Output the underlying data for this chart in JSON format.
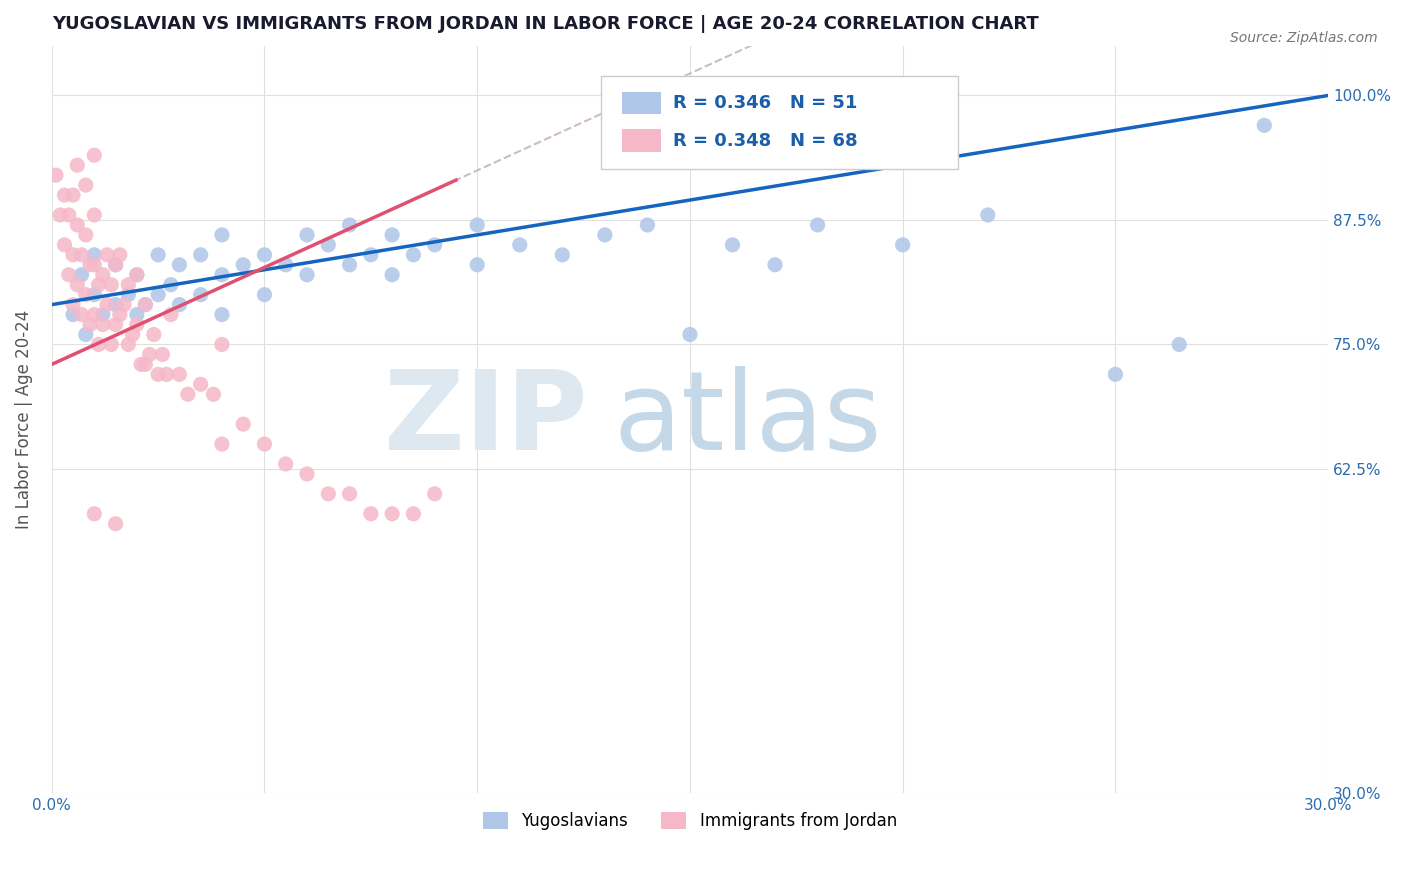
{
  "title": "YUGOSLAVIAN VS IMMIGRANTS FROM JORDAN IN LABOR FORCE | AGE 20-24 CORRELATION CHART",
  "source": "Source: ZipAtlas.com",
  "ylabel": "In Labor Force | Age 20-24",
  "xlim": [
    0.0,
    0.3
  ],
  "ylim": [
    0.3,
    1.05
  ],
  "xtick_positions": [
    0.0,
    0.05,
    0.1,
    0.15,
    0.2,
    0.25,
    0.3
  ],
  "xtick_labels": [
    "0.0%",
    "",
    "",
    "",
    "",
    "",
    "30.0%"
  ],
  "ytick_positions": [
    0.3,
    0.625,
    0.75,
    0.875,
    1.0
  ],
  "ytick_labels": [
    "30.0%",
    "62.5%",
    "75.0%",
    "87.5%",
    "100.0%"
  ],
  "blue_R": 0.346,
  "blue_N": 51,
  "pink_R": 0.348,
  "pink_N": 68,
  "blue_color": "#aec6e8",
  "pink_color": "#f5b8c8",
  "blue_line_color": "#1565c0",
  "pink_line_color": "#e05070",
  "pink_dash_color": "#ccaabb",
  "legend_R_color": "#1a5fa8",
  "blue_scatter_x": [
    0.005,
    0.007,
    0.008,
    0.01,
    0.01,
    0.012,
    0.015,
    0.015,
    0.018,
    0.02,
    0.02,
    0.022,
    0.025,
    0.025,
    0.028,
    0.03,
    0.03,
    0.035,
    0.035,
    0.04,
    0.04,
    0.04,
    0.045,
    0.05,
    0.05,
    0.055,
    0.06,
    0.06,
    0.065,
    0.07,
    0.07,
    0.075,
    0.08,
    0.08,
    0.085,
    0.09,
    0.1,
    0.1,
    0.11,
    0.12,
    0.13,
    0.14,
    0.15,
    0.16,
    0.17,
    0.18,
    0.2,
    0.22,
    0.25,
    0.265,
    0.285
  ],
  "blue_scatter_y": [
    0.78,
    0.82,
    0.76,
    0.8,
    0.84,
    0.78,
    0.79,
    0.83,
    0.8,
    0.78,
    0.82,
    0.79,
    0.8,
    0.84,
    0.81,
    0.79,
    0.83,
    0.8,
    0.84,
    0.78,
    0.82,
    0.86,
    0.83,
    0.8,
    0.84,
    0.83,
    0.82,
    0.86,
    0.85,
    0.83,
    0.87,
    0.84,
    0.82,
    0.86,
    0.84,
    0.85,
    0.83,
    0.87,
    0.85,
    0.84,
    0.86,
    0.87,
    0.76,
    0.85,
    0.83,
    0.87,
    0.85,
    0.88,
    0.72,
    0.75,
    0.97
  ],
  "pink_scatter_x": [
    0.001,
    0.002,
    0.003,
    0.003,
    0.004,
    0.004,
    0.005,
    0.005,
    0.005,
    0.006,
    0.006,
    0.006,
    0.007,
    0.007,
    0.008,
    0.008,
    0.008,
    0.009,
    0.009,
    0.01,
    0.01,
    0.01,
    0.01,
    0.011,
    0.011,
    0.012,
    0.012,
    0.013,
    0.013,
    0.014,
    0.014,
    0.015,
    0.015,
    0.016,
    0.016,
    0.017,
    0.018,
    0.018,
    0.019,
    0.02,
    0.02,
    0.021,
    0.022,
    0.022,
    0.023,
    0.024,
    0.025,
    0.026,
    0.027,
    0.028,
    0.03,
    0.032,
    0.035,
    0.038,
    0.04,
    0.04,
    0.045,
    0.05,
    0.055,
    0.06,
    0.065,
    0.07,
    0.075,
    0.08,
    0.085,
    0.09,
    0.01,
    0.015
  ],
  "pink_scatter_y": [
    0.92,
    0.88,
    0.85,
    0.9,
    0.82,
    0.88,
    0.79,
    0.84,
    0.9,
    0.81,
    0.87,
    0.93,
    0.78,
    0.84,
    0.8,
    0.86,
    0.91,
    0.77,
    0.83,
    0.78,
    0.83,
    0.88,
    0.94,
    0.75,
    0.81,
    0.77,
    0.82,
    0.79,
    0.84,
    0.75,
    0.81,
    0.77,
    0.83,
    0.78,
    0.84,
    0.79,
    0.75,
    0.81,
    0.76,
    0.77,
    0.82,
    0.73,
    0.73,
    0.79,
    0.74,
    0.76,
    0.72,
    0.74,
    0.72,
    0.78,
    0.72,
    0.7,
    0.71,
    0.7,
    0.65,
    0.75,
    0.67,
    0.65,
    0.63,
    0.62,
    0.6,
    0.6,
    0.58,
    0.58,
    0.58,
    0.6,
    0.58,
    0.57
  ]
}
